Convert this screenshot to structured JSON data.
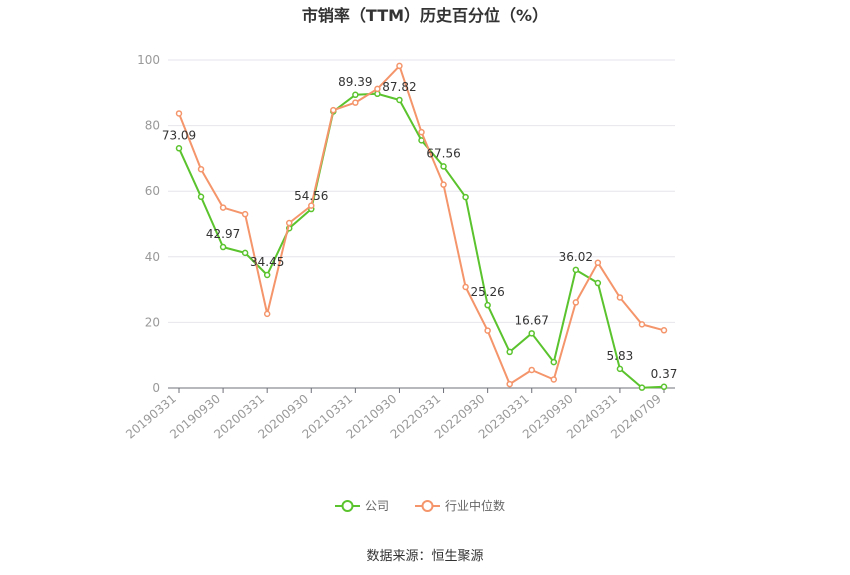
{
  "chart_data": {
    "type": "line",
    "title": "市销率（TTM）历史百分位（%）",
    "source": "数据来源：恒生聚源",
    "ylim": [
      0,
      100
    ],
    "yticks": [
      0,
      20,
      40,
      60,
      80,
      100
    ],
    "grid": true,
    "legend_position": "bottom",
    "categories": [
      "20190331",
      "20190630",
      "20190930",
      "20191231",
      "20200331",
      "20200630",
      "20200930",
      "20201231",
      "20210331",
      "20210630",
      "20210930",
      "20211231",
      "20220331",
      "20220630",
      "20220930",
      "20221231",
      "20230331",
      "20230630",
      "20230930",
      "20231231",
      "20240331",
      "20240630",
      "20240709"
    ],
    "xticks": [
      "20190331",
      "20190930",
      "20200331",
      "20200930",
      "20210331",
      "20210930",
      "20220331",
      "20220930",
      "20230331",
      "20230930",
      "20240331",
      "20240709"
    ],
    "series": [
      {
        "name": "公司",
        "color": "#5ac32d",
        "values": [
          73.09,
          58.3,
          42.97,
          41.2,
          34.45,
          48.7,
          54.56,
          84.3,
          89.39,
          89.7,
          87.82,
          75.5,
          67.56,
          58.2,
          25.26,
          11.0,
          16.67,
          7.9,
          36.02,
          32.0,
          5.83,
          0.1,
          0.37
        ],
        "labels": {
          "0": "73.09",
          "2": "42.97",
          "4": "34.45",
          "6": "54.56",
          "8": "89.39",
          "10": "87.82",
          "12": "67.56",
          "14": "25.26",
          "16": "16.67",
          "18": "36.02",
          "20": "5.83",
          "22": "0.37"
        }
      },
      {
        "name": "行业中位数",
        "color": "#f4956b",
        "values": [
          83.7,
          66.7,
          55.0,
          53.0,
          22.6,
          50.3,
          55.6,
          84.7,
          87.0,
          91.2,
          98.2,
          78.0,
          62.0,
          30.8,
          17.5,
          1.2,
          5.5,
          2.6,
          26.1,
          38.2,
          27.6,
          19.4,
          17.6
        ],
        "labels": {}
      }
    ]
  }
}
